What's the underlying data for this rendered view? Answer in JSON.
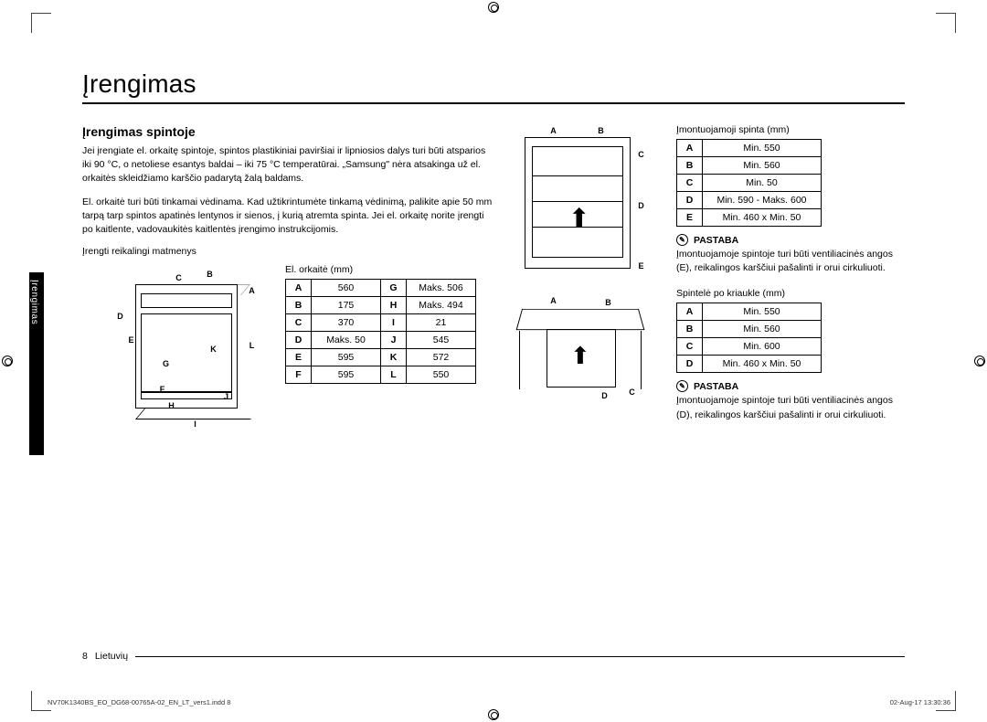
{
  "title": "Įrengimas",
  "sideTab": "Įrengimas",
  "section": {
    "heading": "Įrengimas spintoje",
    "para1": "Jei įrengiate el. orkaitę spintoje, spintos plastikiniai paviršiai ir lipniosios dalys turi būti atsparios iki 90 °C, o netoliese esantys baldai – iki 75 °C temperatūrai. „Samsung\" nėra atsakinga už el. orkaitės skleidžiamo karščio padarytą žalą baldams.",
    "para2": "El. orkaitė turi būti tinkamai vėdinama. Kad užtikrintumėte tinkamą vėdinimą, palikite apie 50 mm tarpą tarp spintos apatinės lentynos ir sienos, į kurią atremta spinta. Jei el. orkaitę norite įrengti po kaitlente, vadovaukitės kaitlentės įrengimo instrukcijomis.",
    "smallHeading": "Įrengti reikalingi matmenys"
  },
  "ovenTable": {
    "caption": "El. orkaitė (mm)",
    "rows": [
      [
        "A",
        "560",
        "G",
        "Maks. 506"
      ],
      [
        "B",
        "175",
        "H",
        "Maks. 494"
      ],
      [
        "C",
        "370",
        "I",
        "21"
      ],
      [
        "D",
        "Maks. 50",
        "J",
        "545"
      ],
      [
        "E",
        "595",
        "K",
        "572"
      ],
      [
        "F",
        "595",
        "L",
        "550"
      ]
    ]
  },
  "ovenLabels": [
    "A",
    "B",
    "C",
    "D",
    "E",
    "F",
    "G",
    "H",
    "I",
    "J",
    "K",
    "L"
  ],
  "cabinetTable": {
    "caption": "Įmontuojamoji spinta (mm)",
    "rows": [
      [
        "A",
        "Min. 550"
      ],
      [
        "B",
        "Min. 560"
      ],
      [
        "C",
        "Min. 50"
      ],
      [
        "D",
        "Min. 590 - Maks. 600"
      ],
      [
        "E",
        "Min. 460 x Min. 50"
      ]
    ]
  },
  "cabinetLabels": [
    "A",
    "B",
    "C",
    "D",
    "E"
  ],
  "sinkTable": {
    "caption": "Spintelė po kriaukle (mm)",
    "rows": [
      [
        "A",
        "Min. 550"
      ],
      [
        "B",
        "Min. 560"
      ],
      [
        "C",
        "Min. 600"
      ],
      [
        "D",
        "Min. 460 x Min. 50"
      ]
    ]
  },
  "sinkLabels": [
    "A",
    "B",
    "C",
    "D"
  ],
  "noteLabel": "PASTABA",
  "note1": "Įmontuojamoje spintoje turi būti ventiliacinės angos (E), reikalingos karščiui pašalinti ir orui cirkuliuoti.",
  "note2": "Įmontuojamoje spintoje turi būti ventiliacinės angos (D), reikalingos karščiui pašalinti ir orui cirkuliuoti.",
  "footer": {
    "pageNum": "8",
    "lang": "Lietuvių"
  },
  "indd": {
    "left": "NV70K1340BS_EO_DG68-00765A-02_EN_LT_vers1.indd   8",
    "right": "02-Aug-17   13:30:36"
  }
}
